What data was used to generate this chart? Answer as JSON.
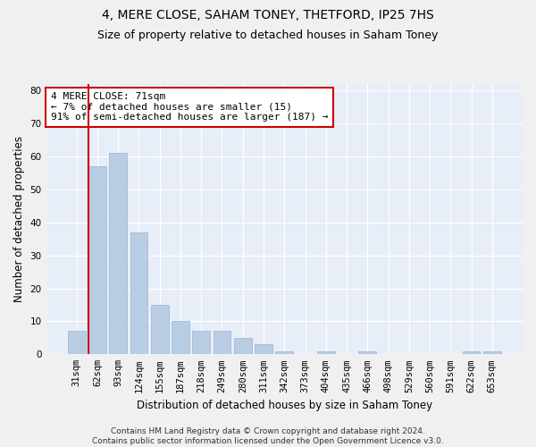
{
  "title": "4, MERE CLOSE, SAHAM TONEY, THETFORD, IP25 7HS",
  "subtitle": "Size of property relative to detached houses in Saham Toney",
  "xlabel": "Distribution of detached houses by size in Saham Toney",
  "ylabel": "Number of detached properties",
  "categories": [
    "31sqm",
    "62sqm",
    "93sqm",
    "124sqm",
    "155sqm",
    "187sqm",
    "218sqm",
    "249sqm",
    "280sqm",
    "311sqm",
    "342sqm",
    "373sqm",
    "404sqm",
    "435sqm",
    "466sqm",
    "498sqm",
    "529sqm",
    "560sqm",
    "591sqm",
    "622sqm",
    "653sqm"
  ],
  "values": [
    7,
    57,
    61,
    37,
    15,
    10,
    7,
    7,
    5,
    3,
    1,
    0,
    1,
    0,
    1,
    0,
    0,
    0,
    0,
    1,
    1
  ],
  "bar_color": "#b8cce4",
  "bar_edge_color": "#9ab3d1",
  "background_color": "#e8eef8",
  "fig_background_color": "#f0f0f0",
  "grid_color": "#ffffff",
  "vline_color": "#cc0000",
  "vline_x": 0.575,
  "annotation_text": "4 MERE CLOSE: 71sqm\n← 7% of detached houses are smaller (15)\n91% of semi-detached houses are larger (187) →",
  "annotation_box_color": "#ffffff",
  "annotation_box_edge": "#cc0000",
  "ylim": [
    0,
    82
  ],
  "yticks": [
    0,
    10,
    20,
    30,
    40,
    50,
    60,
    70,
    80
  ],
  "footnote": "Contains HM Land Registry data © Crown copyright and database right 2024.\nContains public sector information licensed under the Open Government Licence v3.0.",
  "title_fontsize": 10,
  "subtitle_fontsize": 9,
  "xlabel_fontsize": 8.5,
  "ylabel_fontsize": 8.5,
  "tick_fontsize": 7.5,
  "annotation_fontsize": 8,
  "footnote_fontsize": 6.5
}
